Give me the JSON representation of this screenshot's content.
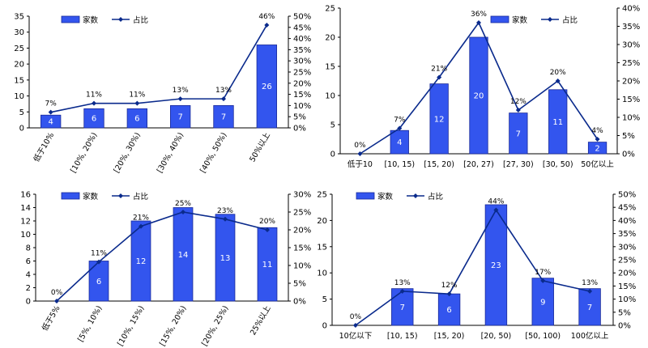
{
  "chart_data": [
    {
      "type": "bar",
      "categories": [
        "低于10%",
        "[10%, 20%)",
        "[20%, 30%)",
        "[30%, 40%)",
        "[40%, 50%)",
        "50%以上"
      ],
      "series": [
        {
          "name": "家数",
          "type": "bar",
          "values": [
            4,
            6,
            6,
            7,
            7,
            26
          ]
        },
        {
          "name": "占比",
          "type": "line",
          "values": [
            7,
            11,
            11,
            13,
            13,
            46
          ],
          "labels": [
            "7%",
            "11%",
            "11%",
            "13%",
            "13%",
            "46%"
          ]
        }
      ],
      "ylim": [
        0,
        35
      ],
      "yticks": [
        "0",
        "5",
        "10",
        "15",
        "20",
        "25",
        "30",
        "35"
      ],
      "y2lim": [
        0,
        50
      ],
      "y2ticks": [
        "0%",
        "5%",
        "10%",
        "15%",
        "20%",
        "25%",
        "30%",
        "35%",
        "40%",
        "45%",
        "50%"
      ],
      "legend": "top"
    },
    {
      "type": "bar",
      "categories": [
        "低于10",
        "[10, 15)",
        "[15, 20)",
        "[20, 27)",
        "[27, 30)",
        "[30, 50)",
        "50亿以上"
      ],
      "series": [
        {
          "name": "家数",
          "type": "bar",
          "values": [
            0,
            4,
            12,
            20,
            7,
            11,
            2
          ]
        },
        {
          "name": "占比",
          "type": "line",
          "values": [
            0,
            7,
            21,
            36,
            12,
            20,
            4
          ],
          "labels": [
            "0%",
            "7%",
            "21%",
            "36%",
            "12%",
            "20%",
            "4%"
          ]
        }
      ],
      "ylim": [
        0,
        25
      ],
      "yticks": [
        "0",
        "5",
        "10",
        "15",
        "20",
        "25"
      ],
      "y2lim": [
        0,
        40
      ],
      "y2ticks": [
        "0%",
        "5%",
        "10%",
        "15%",
        "20%",
        "25%",
        "30%",
        "35%",
        "40%"
      ],
      "legend": "top"
    },
    {
      "type": "bar",
      "categories": [
        "低于5%",
        "[5%, 10%)",
        "[10%, 15%)",
        "[15%, 20%)",
        "[20%, 25%)",
        "25%以上"
      ],
      "series": [
        {
          "name": "家数",
          "type": "bar",
          "values": [
            0,
            6,
            12,
            14,
            13,
            11
          ]
        },
        {
          "name": "占比",
          "type": "line",
          "values": [
            0,
            11,
            21,
            25,
            23,
            20
          ],
          "labels": [
            "0%",
            "11%",
            "21%",
            "25%",
            "23%",
            "20%"
          ]
        }
      ],
      "ylim": [
        0,
        16
      ],
      "yticks": [
        "0",
        "2",
        "4",
        "6",
        "8",
        "10",
        "12",
        "14",
        "16"
      ],
      "y2lim": [
        0,
        30
      ],
      "y2ticks": [
        "0%",
        "5%",
        "10%",
        "15%",
        "20%",
        "25%",
        "30%"
      ],
      "legend": "top"
    },
    {
      "type": "bar",
      "categories": [
        "10亿以下",
        "[10, 15)",
        "[15, 20)",
        "[20, 50)",
        "[50, 100)",
        "100亿以上"
      ],
      "series": [
        {
          "name": "家数",
          "type": "bar",
          "values": [
            0,
            7,
            6,
            23,
            9,
            7
          ]
        },
        {
          "name": "占比",
          "type": "line",
          "values": [
            0,
            13,
            12,
            44,
            17,
            13
          ],
          "labels": [
            "0%",
            "13%",
            "12%",
            "44%",
            "17%",
            "13%"
          ]
        }
      ],
      "ylim": [
        0,
        25
      ],
      "yticks": [
        "0",
        "5",
        "10",
        "15",
        "20",
        "25"
      ],
      "y2lim": [
        0,
        50
      ],
      "y2ticks": [
        "0%",
        "5%",
        "10%",
        "15%",
        "20%",
        "25%",
        "30%",
        "35%",
        "40%",
        "45%",
        "50%"
      ],
      "legend": "top"
    }
  ],
  "colors": {
    "bar": "#3355ee",
    "line": "#0a2a8c",
    "axis": "#000000"
  }
}
